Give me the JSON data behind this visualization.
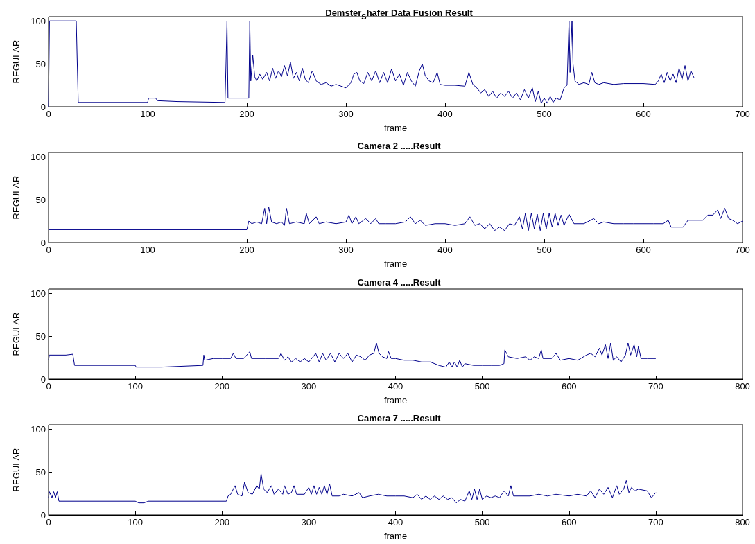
{
  "chart_data": [
    {
      "type": "line",
      "title": "Demster$_{S}$hafer Data Fusion Result",
      "xlabel": "frame",
      "ylabel": "REGULAR",
      "color": "#00008b",
      "xlim": [
        0,
        700
      ],
      "xticks": [
        0,
        100,
        200,
        300,
        400,
        500,
        600,
        700
      ],
      "ylim": [
        0,
        105
      ],
      "yticks": [
        0,
        50,
        100
      ],
      "x": [
        0,
        1,
        28,
        29,
        30,
        100,
        101,
        108,
        110,
        130,
        178,
        179,
        180,
        181,
        202,
        203,
        204,
        206,
        208,
        210,
        213,
        216,
        220,
        223,
        226,
        229,
        232,
        235,
        238,
        241,
        244,
        247,
        250,
        253,
        256,
        259,
        262,
        266,
        270,
        275,
        280,
        285,
        290,
        295,
        300,
        305,
        308,
        311,
        314,
        318,
        322,
        326,
        330,
        334,
        338,
        342,
        346,
        350,
        354,
        358,
        362,
        366,
        370,
        374,
        377,
        380,
        384,
        388,
        392,
        395,
        400,
        410,
        420,
        424,
        428,
        432,
        436,
        440,
        444,
        448,
        452,
        456,
        460,
        464,
        468,
        472,
        476,
        480,
        484,
        488,
        491,
        494,
        497,
        500,
        503,
        506,
        509,
        512,
        516,
        520,
        523,
        525,
        526,
        528,
        529,
        531,
        535,
        540,
        545,
        548,
        551,
        555,
        560,
        570,
        580,
        600,
        612,
        615,
        618,
        621,
        624,
        627,
        630,
        633,
        636,
        639,
        642,
        645,
        648,
        651
      ],
      "values": [
        0,
        100,
        100,
        50,
        5,
        5,
        10,
        10,
        7,
        6,
        5,
        50,
        100,
        10,
        10,
        100,
        30,
        60,
        35,
        30,
        38,
        32,
        40,
        30,
        45,
        33,
        42,
        35,
        48,
        36,
        52,
        33,
        40,
        30,
        45,
        32,
        28,
        42,
        30,
        26,
        28,
        24,
        26,
        24,
        22,
        28,
        38,
        40,
        30,
        27,
        40,
        30,
        42,
        28,
        40,
        28,
        44,
        30,
        38,
        25,
        40,
        30,
        24,
        42,
        50,
        36,
        30,
        28,
        40,
        26,
        25,
        25,
        24,
        40,
        26,
        22,
        16,
        20,
        12,
        18,
        10,
        16,
        12,
        18,
        10,
        16,
        8,
        20,
        10,
        22,
        6,
        18,
        4,
        10,
        4,
        12,
        5,
        10,
        8,
        22,
        25,
        100,
        40,
        100,
        50,
        30,
        26,
        28,
        26,
        40,
        28,
        26,
        28,
        26,
        27,
        27,
        26,
        30,
        38,
        28,
        40,
        30,
        38,
        28,
        45,
        32,
        48,
        30,
        42,
        34
      ]
    },
    {
      "type": "line",
      "title": "Camera 2 .....Result",
      "xlabel": "frame",
      "ylabel": "REGULAR",
      "color": "#00008b",
      "xlim": [
        0,
        700
      ],
      "xticks": [
        0,
        100,
        200,
        300,
        400,
        500,
        600,
        700
      ],
      "ylim": [
        0,
        105
      ],
      "yticks": [
        0,
        50,
        100
      ],
      "x": [
        0,
        200,
        202,
        205,
        210,
        215,
        218,
        220,
        222,
        225,
        230,
        235,
        238,
        240,
        243,
        250,
        258,
        260,
        263,
        270,
        273,
        280,
        290,
        300,
        303,
        306,
        310,
        313,
        320,
        325,
        330,
        333,
        340,
        350,
        360,
        365,
        370,
        375,
        380,
        390,
        400,
        410,
        420,
        425,
        430,
        435,
        440,
        445,
        450,
        455,
        460,
        465,
        470,
        475,
        478,
        481,
        484,
        487,
        490,
        493,
        496,
        499,
        502,
        505,
        508,
        511,
        514,
        517,
        520,
        525,
        530,
        540,
        550,
        555,
        560,
        570,
        580,
        590,
        600,
        610,
        620,
        625,
        628,
        640,
        645,
        650,
        660,
        665,
        670,
        675,
        678,
        682,
        686,
        690,
        695,
        700
      ],
      "values": [
        15,
        15,
        25,
        22,
        24,
        22,
        40,
        22,
        42,
        24,
        22,
        24,
        20,
        40,
        22,
        24,
        22,
        34,
        22,
        30,
        22,
        24,
        22,
        24,
        32,
        22,
        30,
        22,
        28,
        22,
        28,
        22,
        22,
        22,
        24,
        30,
        22,
        26,
        20,
        22,
        22,
        20,
        22,
        30,
        20,
        22,
        16,
        22,
        14,
        18,
        14,
        22,
        20,
        30,
        16,
        34,
        14,
        34,
        16,
        33,
        14,
        34,
        16,
        34,
        18,
        34,
        20,
        32,
        20,
        33,
        22,
        22,
        28,
        22,
        24,
        22,
        22,
        22,
        22,
        22,
        22,
        26,
        18,
        18,
        26,
        26,
        26,
        32,
        32,
        38,
        28,
        40,
        28,
        26,
        22,
        25
      ]
    },
    {
      "type": "line",
      "title": "Camera 4 .....Result",
      "xlabel": "frame",
      "ylabel": "REGULAR",
      "color": "#00008b",
      "xlim": [
        0,
        800
      ],
      "xticks": [
        0,
        100,
        200,
        300,
        400,
        500,
        600,
        700,
        800
      ],
      "ylim": [
        0,
        105
      ],
      "yticks": [
        0,
        50,
        100
      ],
      "x": [
        0,
        1,
        20,
        28,
        30,
        100,
        101,
        130,
        178,
        179,
        180,
        190,
        200,
        210,
        213,
        216,
        225,
        232,
        234,
        250,
        265,
        268,
        272,
        276,
        280,
        285,
        290,
        295,
        300,
        305,
        308,
        312,
        316,
        320,
        325,
        330,
        335,
        340,
        345,
        350,
        355,
        360,
        365,
        370,
        375,
        378,
        381,
        385,
        390,
        392,
        395,
        400,
        410,
        420,
        430,
        440,
        450,
        458,
        462,
        465,
        468,
        471,
        474,
        477,
        480,
        490,
        500,
        510,
        520,
        525,
        526,
        530,
        540,
        550,
        555,
        560,
        565,
        568,
        570,
        580,
        585,
        590,
        600,
        610,
        620,
        625,
        630,
        635,
        638,
        642,
        645,
        648,
        651,
        655,
        660,
        665,
        668,
        671,
        675,
        678,
        680,
        683,
        690,
        700
      ],
      "values": [
        22,
        28,
        28,
        29,
        16,
        16,
        14,
        14,
        16,
        28,
        22,
        24,
        24,
        24,
        30,
        24,
        24,
        32,
        24,
        24,
        24,
        30,
        22,
        26,
        20,
        24,
        20,
        24,
        20,
        26,
        30,
        20,
        30,
        22,
        30,
        20,
        30,
        24,
        30,
        20,
        28,
        26,
        22,
        28,
        30,
        42,
        30,
        26,
        24,
        32,
        24,
        24,
        22,
        22,
        20,
        20,
        16,
        14,
        20,
        14,
        20,
        14,
        22,
        14,
        18,
        16,
        16,
        16,
        16,
        18,
        34,
        26,
        24,
        26,
        22,
        26,
        24,
        34,
        24,
        24,
        30,
        22,
        24,
        22,
        28,
        30,
        26,
        36,
        28,
        40,
        24,
        42,
        22,
        26,
        20,
        28,
        42,
        28,
        40,
        26,
        38,
        24,
        24,
        24
      ]
    },
    {
      "type": "line",
      "title": "Camera 7 .....Result",
      "xlabel": "frame",
      "ylabel": "REGULAR",
      "color": "#00008b",
      "xlim": [
        0,
        800
      ],
      "xticks": [
        0,
        100,
        200,
        300,
        400,
        500,
        600,
        700,
        800
      ],
      "ylim": [
        0,
        105
      ],
      "yticks": [
        0,
        50,
        100
      ],
      "x": [
        0,
        1,
        4,
        6,
        8,
        10,
        12,
        100,
        104,
        110,
        115,
        205,
        207,
        210,
        215,
        218,
        223,
        226,
        230,
        235,
        240,
        243,
        245,
        248,
        252,
        257,
        260,
        265,
        270,
        272,
        276,
        280,
        283,
        286,
        295,
        300,
        303,
        306,
        309,
        312,
        315,
        318,
        321,
        324,
        327,
        335,
        340,
        350,
        358,
        362,
        370,
        380,
        390,
        400,
        410,
        420,
        425,
        430,
        435,
        440,
        445,
        450,
        455,
        460,
        465,
        470,
        475,
        480,
        485,
        488,
        491,
        494,
        497,
        500,
        505,
        510,
        515,
        520,
        525,
        530,
        533,
        536,
        545,
        555,
        565,
        575,
        585,
        600,
        610,
        620,
        625,
        630,
        635,
        640,
        645,
        650,
        655,
        658,
        663,
        666,
        669,
        672,
        676,
        680,
        690,
        695,
        700
      ],
      "values": [
        20,
        27,
        20,
        27,
        20,
        27,
        16,
        16,
        14,
        14,
        16,
        16,
        22,
        24,
        34,
        24,
        22,
        38,
        26,
        24,
        34,
        30,
        48,
        30,
        26,
        34,
        24,
        30,
        24,
        34,
        24,
        26,
        34,
        24,
        24,
        32,
        24,
        34,
        24,
        32,
        24,
        34,
        24,
        36,
        22,
        22,
        24,
        22,
        26,
        20,
        22,
        24,
        22,
        22,
        22,
        20,
        24,
        18,
        22,
        18,
        22,
        18,
        22,
        18,
        20,
        14,
        18,
        16,
        28,
        18,
        30,
        18,
        30,
        18,
        22,
        20,
        22,
        20,
        28,
        22,
        34,
        22,
        22,
        22,
        24,
        22,
        24,
        22,
        24,
        22,
        28,
        20,
        30,
        24,
        32,
        20,
        34,
        24,
        30,
        40,
        26,
        32,
        28,
        30,
        28,
        20,
        26
      ]
    }
  ]
}
